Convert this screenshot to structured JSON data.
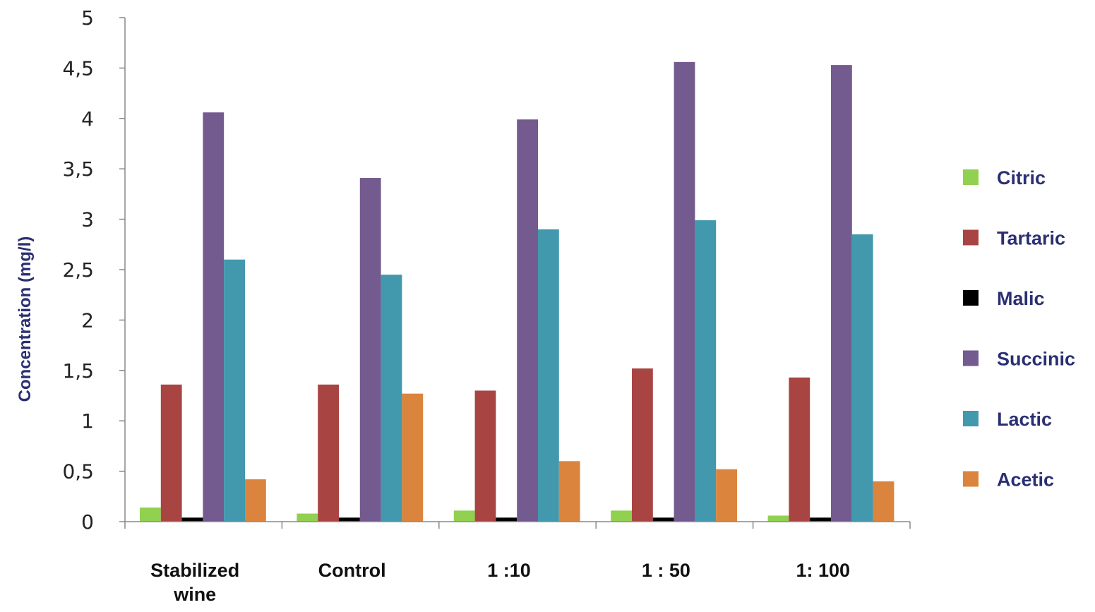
{
  "chart_data": {
    "type": "bar",
    "title": "",
    "xlabel": "",
    "ylabel": "Concentration (mg/l)",
    "ylim": [
      0,
      5
    ],
    "yticks": [
      "0",
      "0,5",
      "1",
      "1,5",
      "2",
      "2,5",
      "3",
      "3,5",
      "4",
      "4,5",
      "5"
    ],
    "grid": false,
    "legend_position": "right",
    "categories": [
      [
        "Stabilized",
        "wine"
      ],
      [
        "Control"
      ],
      [
        "1 :10"
      ],
      [
        "1 : 50"
      ],
      [
        "1: 100"
      ]
    ],
    "series": [
      {
        "name": "Citric",
        "color": "#92d050",
        "values": [
          0.14,
          0.08,
          0.11,
          0.11,
          0.06
        ]
      },
      {
        "name": "Tartaric",
        "color": "#a84442",
        "values": [
          1.36,
          1.36,
          1.3,
          1.52,
          1.43
        ]
      },
      {
        "name": "Malic",
        "color": "#000000",
        "values": [
          0.04,
          0.04,
          0.04,
          0.04,
          0.04
        ]
      },
      {
        "name": "Succinic",
        "color": "#735a8f",
        "values": [
          4.06,
          3.41,
          3.99,
          4.56,
          4.53
        ]
      },
      {
        "name": "Lactic",
        "color": "#4298ad",
        "values": [
          2.6,
          2.45,
          2.9,
          2.99,
          2.85
        ]
      },
      {
        "name": "Acetic",
        "color": "#db843d",
        "values": [
          0.42,
          1.27,
          0.6,
          0.52,
          0.4
        ]
      }
    ]
  }
}
